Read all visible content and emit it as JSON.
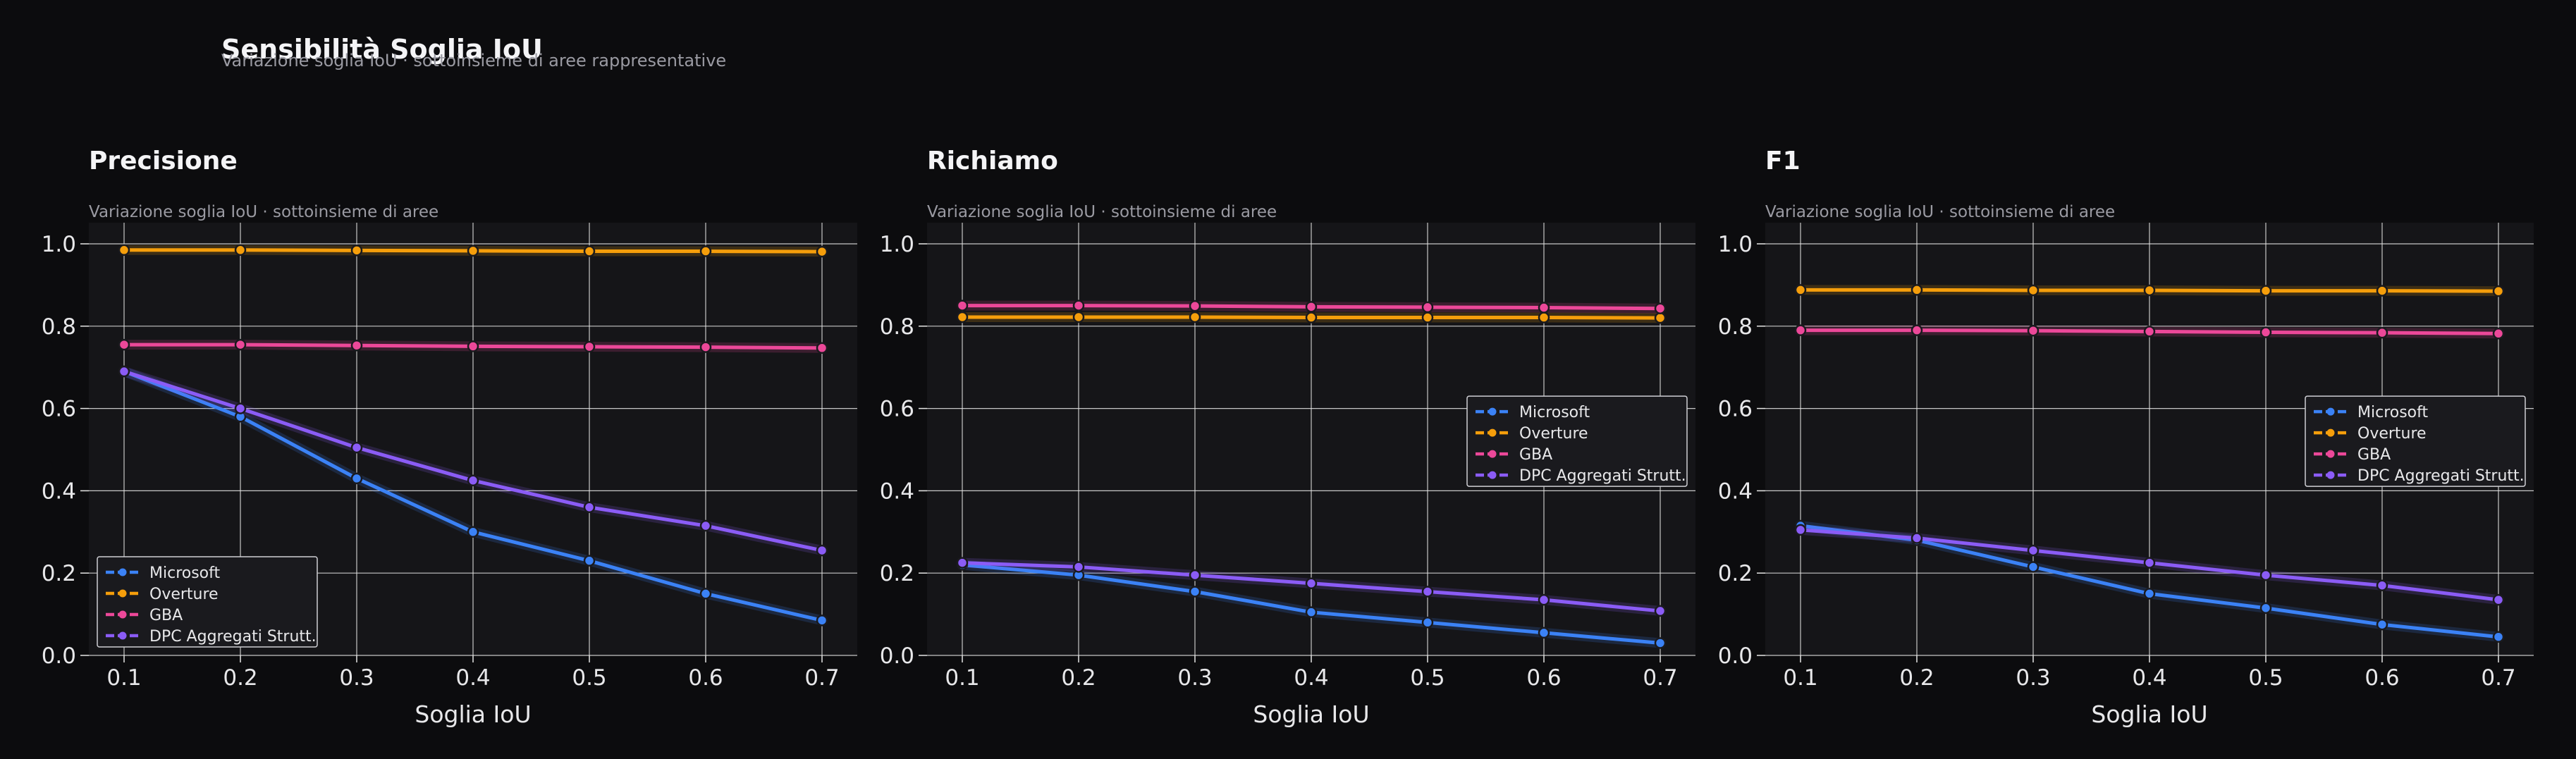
{
  "title": "Sensibilità Soglia IoU",
  "subtitle": "Variazione soglia IoU · sottoinsieme di aree rappresentative",
  "colors": {
    "Microsoft": "#3b82f6",
    "Overture": "#f59e0b",
    "GBA": "#ec4899",
    "DPC Aggregati Strutt.": "#8b5cf6",
    "background": "#0c0c0e",
    "panel": "#151518",
    "grid": "#e6e6e6",
    "text": "#e8e8ea",
    "muted": "#9a9aa2"
  },
  "chart_data": [
    {
      "type": "line",
      "title": "Precisione",
      "subtitle": "Variazione soglia IoU · sottoinsieme di aree",
      "xlabel": "Soglia IoU",
      "ylabel": "",
      "x": [
        0.1,
        0.2,
        0.3,
        0.4,
        0.5,
        0.6,
        0.7
      ],
      "xticks": [
        "0.1",
        "0.2",
        "0.3",
        "0.4",
        "0.5",
        "0.6",
        "0.7"
      ],
      "yticks": [
        "0.0",
        "0.2",
        "0.4",
        "0.6",
        "0.8",
        "1.0"
      ],
      "ylim": [
        0,
        1.0
      ],
      "grid": true,
      "legend": "bottom-left",
      "series": [
        {
          "name": "Microsoft",
          "values": [
            0.69,
            0.58,
            0.43,
            0.3,
            0.23,
            0.15,
            0.085
          ]
        },
        {
          "name": "Overture",
          "values": [
            0.985,
            0.985,
            0.984,
            0.983,
            0.982,
            0.982,
            0.981
          ]
        },
        {
          "name": "GBA",
          "values": [
            0.755,
            0.755,
            0.753,
            0.751,
            0.75,
            0.749,
            0.747
          ]
        },
        {
          "name": "DPC Aggregati Strutt.",
          "values": [
            0.69,
            0.6,
            0.505,
            0.425,
            0.36,
            0.315,
            0.255
          ]
        }
      ]
    },
    {
      "type": "line",
      "title": "Richiamo",
      "subtitle": "Variazione soglia IoU · sottoinsieme di aree",
      "xlabel": "Soglia IoU",
      "ylabel": "",
      "x": [
        0.1,
        0.2,
        0.3,
        0.4,
        0.5,
        0.6,
        0.7
      ],
      "xticks": [
        "0.1",
        "0.2",
        "0.3",
        "0.4",
        "0.5",
        "0.6",
        "0.7"
      ],
      "yticks": [
        "0.0",
        "0.2",
        "0.4",
        "0.6",
        "0.8",
        "1.0"
      ],
      "ylim": [
        0,
        1.0
      ],
      "grid": true,
      "legend": "center-right",
      "series": [
        {
          "name": "Microsoft",
          "values": [
            0.22,
            0.195,
            0.155,
            0.105,
            0.08,
            0.055,
            0.03
          ]
        },
        {
          "name": "Overture",
          "values": [
            0.822,
            0.822,
            0.822,
            0.821,
            0.821,
            0.821,
            0.82
          ]
        },
        {
          "name": "GBA",
          "values": [
            0.85,
            0.85,
            0.849,
            0.847,
            0.846,
            0.845,
            0.843
          ]
        },
        {
          "name": "DPC Aggregati Strutt.",
          "values": [
            0.225,
            0.215,
            0.195,
            0.175,
            0.155,
            0.135,
            0.108
          ]
        }
      ]
    },
    {
      "type": "line",
      "title": "F1",
      "subtitle": "Variazione soglia IoU · sottoinsieme di aree",
      "xlabel": "Soglia IoU",
      "ylabel": "",
      "x": [
        0.1,
        0.2,
        0.3,
        0.4,
        0.5,
        0.6,
        0.7
      ],
      "xticks": [
        "0.1",
        "0.2",
        "0.3",
        "0.4",
        "0.5",
        "0.6",
        "0.7"
      ],
      "yticks": [
        "0.0",
        "0.2",
        "0.4",
        "0.6",
        "0.8",
        "1.0"
      ],
      "ylim": [
        0,
        1.0
      ],
      "grid": true,
      "legend": "center-right",
      "series": [
        {
          "name": "Microsoft",
          "values": [
            0.315,
            0.28,
            0.215,
            0.15,
            0.115,
            0.075,
            0.045
          ]
        },
        {
          "name": "Overture",
          "values": [
            0.888,
            0.888,
            0.887,
            0.887,
            0.886,
            0.886,
            0.885
          ]
        },
        {
          "name": "GBA",
          "values": [
            0.79,
            0.79,
            0.789,
            0.787,
            0.785,
            0.784,
            0.782
          ]
        },
        {
          "name": "DPC Aggregati Strutt.",
          "values": [
            0.305,
            0.285,
            0.255,
            0.225,
            0.195,
            0.17,
            0.135
          ]
        }
      ]
    }
  ]
}
